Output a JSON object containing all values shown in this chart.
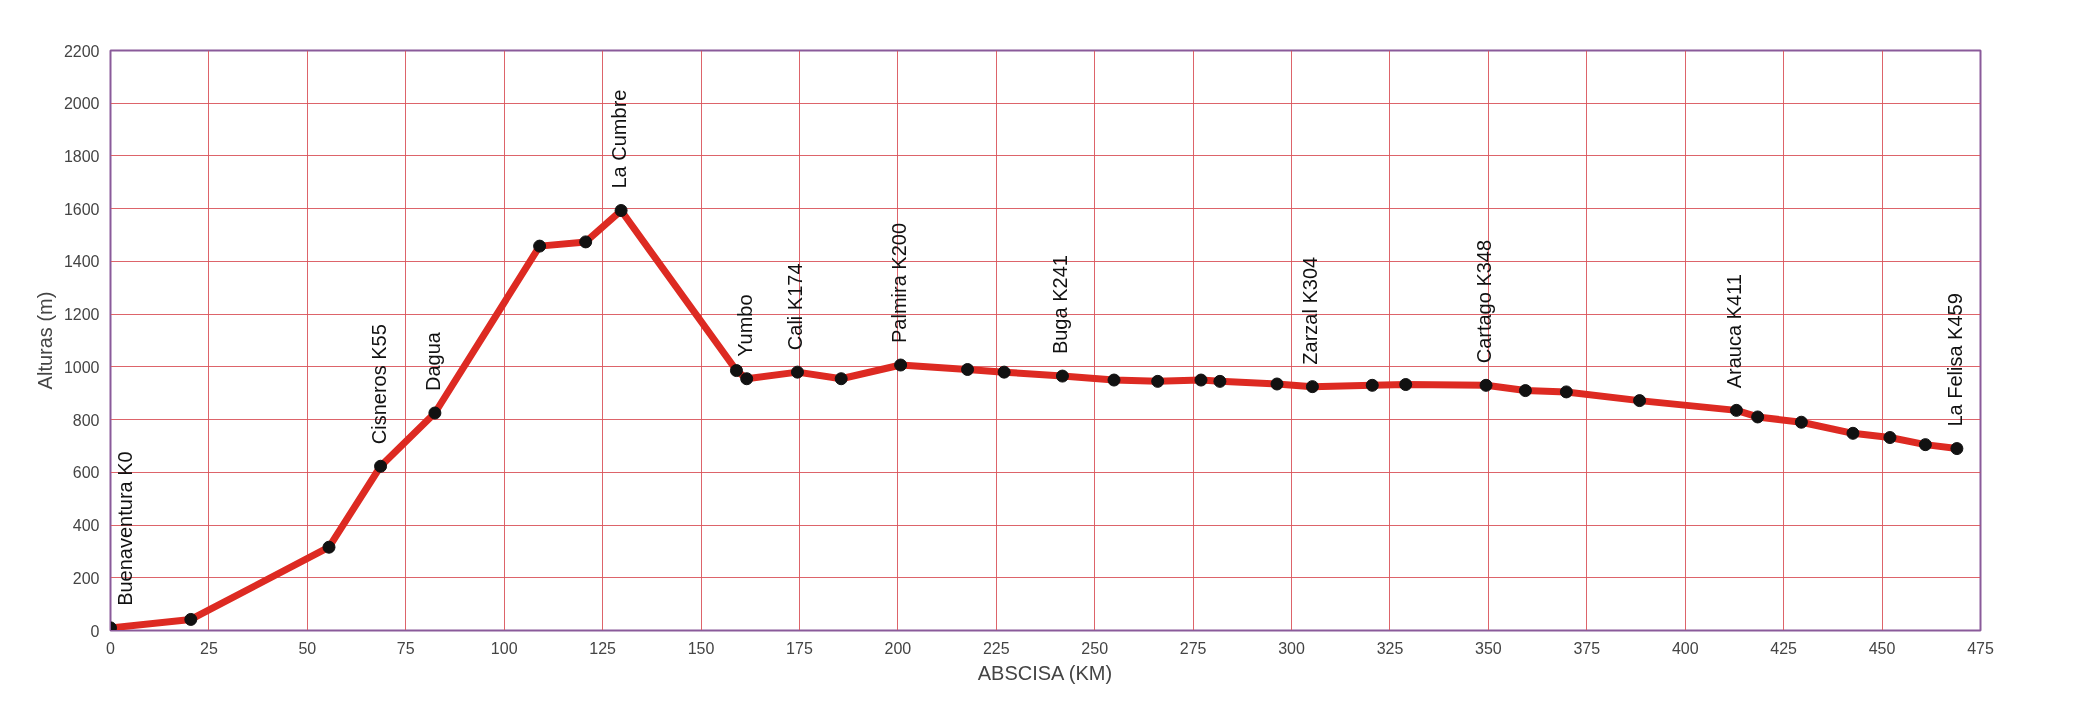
{
  "chart_data": {
    "type": "line",
    "xlabel": "ABSCISA (KM)",
    "ylabel": "Alturas (m)",
    "x": [
      0,
      20.4,
      55.5,
      68.6,
      82.4,
      109,
      120.7,
      129.7,
      159,
      161.6,
      174.5,
      185.6,
      200.7,
      217.7,
      227,
      241.8,
      254.9,
      266,
      277,
      281.8,
      296.3,
      305.3,
      320.5,
      329,
      349.4,
      359.4,
      369.8,
      388.4,
      413,
      418.4,
      429.5,
      442.6,
      452,
      461,
      469
    ],
    "series": [
      {
        "color": "#dd2a22",
        "values": [
          10,
          42,
          316,
          623,
          825,
          1458,
          1474,
          1593,
          986,
          955,
          980,
          955,
          1007,
          990,
          980,
          965,
          950,
          945,
          950,
          945,
          935,
          925,
          930,
          933,
          930,
          910,
          905,
          872,
          835,
          810,
          790,
          748,
          732,
          705,
          690
        ]
      }
    ],
    "xlim": [
      0,
      475
    ],
    "xticks": [
      0,
      25,
      50,
      75,
      100,
      125,
      150,
      175,
      200,
      225,
      250,
      275,
      300,
      325,
      350,
      375,
      400,
      425,
      450,
      475
    ],
    "ylim": [
      0,
      2200
    ],
    "yticks": [
      0,
      200,
      400,
      600,
      800,
      1000,
      1200,
      1400,
      1600,
      1800,
      2000,
      2200
    ],
    "grid": true,
    "marker": "circle",
    "line_style": "solid",
    "annotations": [
      {
        "text": "Buenaventura K0",
        "x": 0,
        "y": 10
      },
      {
        "text": "Cisneros K55",
        "x": 68.6,
        "y": 623
      },
      {
        "text": "Dagua",
        "x": 82.4,
        "y": 825
      },
      {
        "text": "La Cumbre",
        "x": 129.7,
        "y": 1593
      },
      {
        "text": "Yumbo",
        "x": 161.6,
        "y": 955
      },
      {
        "text": "Cali K174",
        "x": 174.5,
        "y": 980
      },
      {
        "text": "Palmira K200",
        "x": 200.7,
        "y": 1007
      },
      {
        "text": "Buga K241",
        "x": 241.8,
        "y": 965
      },
      {
        "text": "Zarzal K304",
        "x": 305.3,
        "y": 925
      },
      {
        "text": "Cartago K348",
        "x": 349.4,
        "y": 930
      },
      {
        "text": "Arauca K411",
        "x": 413,
        "y": 835
      },
      {
        "text": "La Felisa K459",
        "x": 469,
        "y": 690
      }
    ]
  }
}
